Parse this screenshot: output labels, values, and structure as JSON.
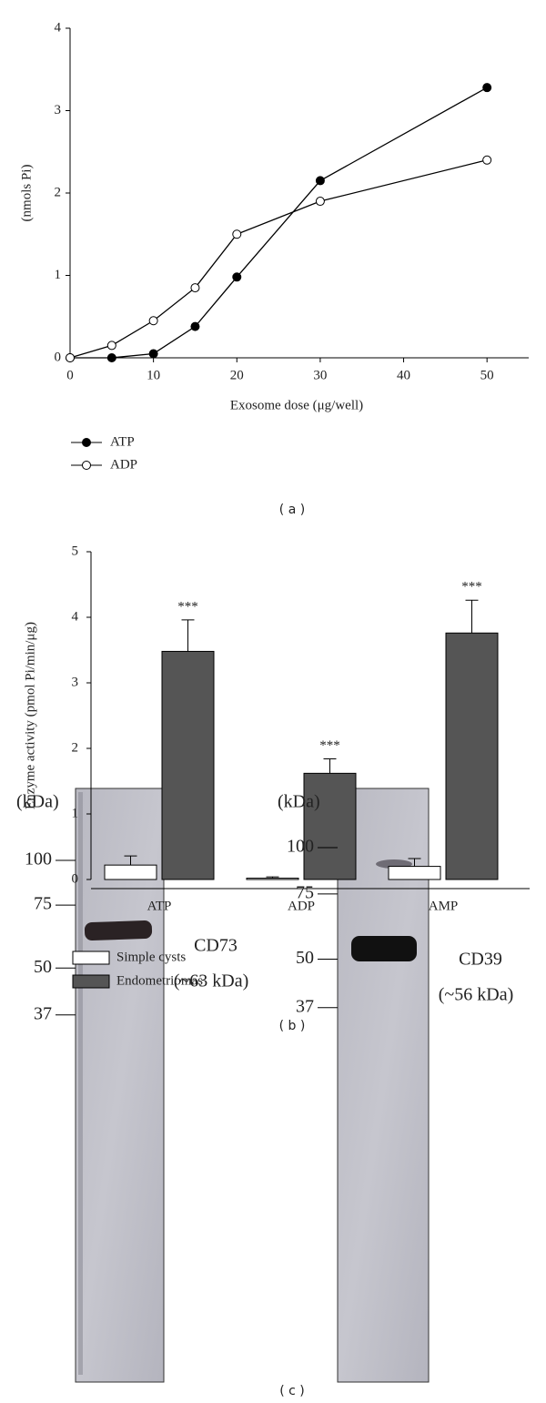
{
  "chart_data": [
    {
      "type": "line",
      "panel_label": "( a )",
      "xlabel": "Exosome dose (μg/well)",
      "ylabel": "(nmols Pi)",
      "x": [
        0,
        5,
        10,
        15,
        20,
        30,
        50
      ],
      "series": [
        {
          "name": "ATP",
          "color": "#000000",
          "marker": "filled",
          "values": [
            0,
            0,
            0.05,
            0.38,
            0.98,
            2.15,
            3.28
          ]
        },
        {
          "name": "ADP",
          "color": "#000000",
          "marker": "open",
          "values": [
            0,
            0.15,
            0.45,
            0.85,
            1.5,
            1.9,
            2.4
          ]
        }
      ],
      "xlim": [
        0,
        55
      ],
      "xticks": [
        0,
        10,
        20,
        30,
        40,
        50
      ],
      "ylim": [
        0,
        4
      ],
      "yticks": [
        0,
        1,
        2,
        3,
        4
      ]
    },
    {
      "type": "bar",
      "panel_label": "( b )",
      "ylabel": "Enzyme activity (pmol Pi/min/μg)",
      "categories": [
        "ATP",
        "ADP",
        "AMP"
      ],
      "series": [
        {
          "name": "Simple cysts",
          "color": "#ffffff",
          "values": [
            0.22,
            0.02,
            0.2
          ],
          "errors": [
            0.14,
            0.02,
            0.12
          ]
        },
        {
          "name": "Endometriomas",
          "color": "#555555",
          "values": [
            3.48,
            1.62,
            3.76
          ],
          "errors": [
            0.48,
            0.22,
            0.5
          ],
          "annotations": [
            "***",
            "***",
            "***"
          ]
        }
      ],
      "ylim": [
        0,
        5
      ],
      "yticks": [
        0,
        1,
        2,
        3,
        4,
        5
      ]
    }
  ],
  "blots": {
    "panel_label": "( c )",
    "items": [
      {
        "unit": "(kDa)",
        "markers": [
          100,
          75,
          50,
          37
        ],
        "protein": "CD73",
        "size": "(~63 kDa)"
      },
      {
        "unit": "(kDa)",
        "markers": [
          100,
          75,
          50,
          37
        ],
        "protein": "CD39",
        "size": "(~56 kDa)"
      }
    ]
  }
}
